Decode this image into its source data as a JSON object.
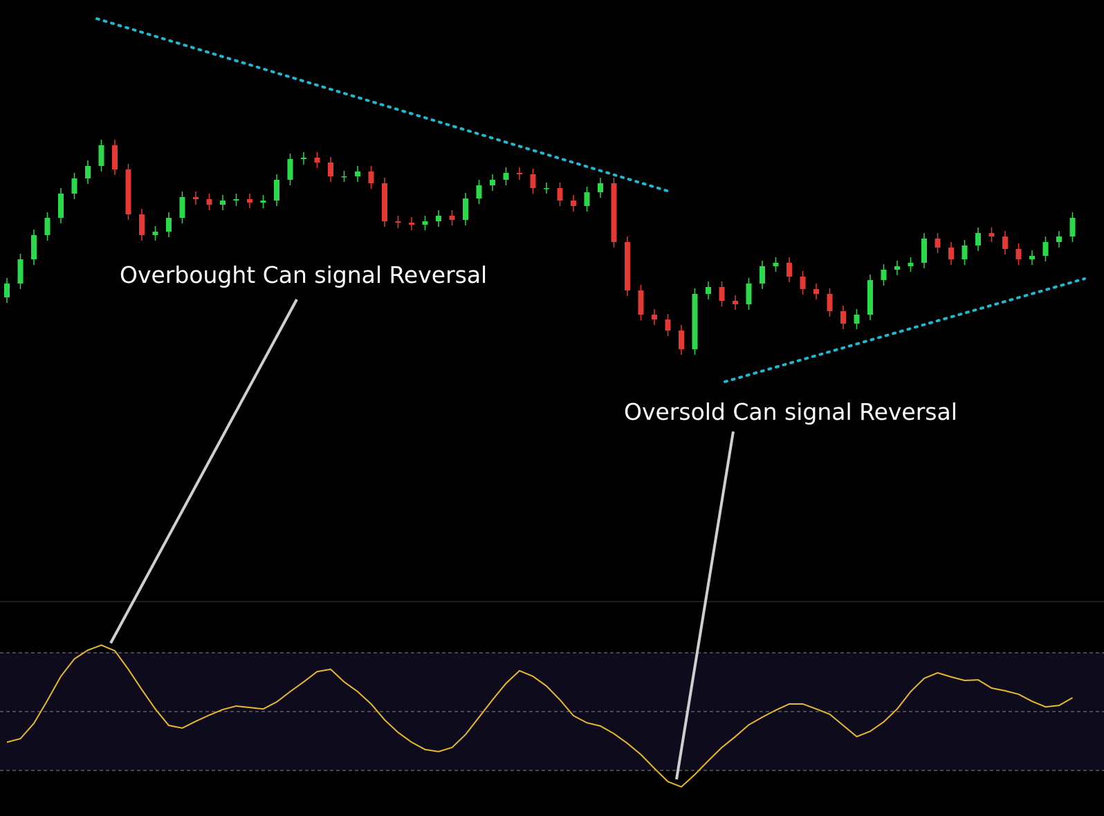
{
  "chart_data": [
    {
      "type": "candlestick",
      "up_color": "#2bd94a",
      "down_color": "#e53935",
      "ylim": [
        0,
        870
      ],
      "open": [
        440,
        460,
        495,
        530,
        555,
        590,
        612,
        630,
        660,
        625,
        560,
        530,
        535,
        555,
        585,
        582,
        574,
        580,
        582,
        577,
        580,
        610,
        640,
        642,
        635,
        615,
        615,
        622,
        605,
        550,
        548,
        545,
        550,
        558,
        552,
        583,
        602,
        610,
        620,
        618,
        598,
        598,
        580,
        572,
        592,
        605,
        520,
        450,
        415,
        408,
        392,
        365,
        445,
        455,
        435,
        430,
        460,
        485,
        490,
        470,
        452,
        445,
        420,
        402,
        415,
        465,
        480,
        485,
        490,
        525,
        512,
        495,
        515,
        533,
        528,
        510,
        495,
        500,
        520,
        528
      ],
      "high": [
        468,
        503,
        538,
        563,
        598,
        620,
        638,
        668,
        668,
        633,
        568,
        543,
        563,
        593,
        593,
        590,
        588,
        590,
        590,
        588,
        618,
        648,
        650,
        650,
        643,
        623,
        630,
        630,
        613,
        558,
        556,
        558,
        566,
        566,
        591,
        610,
        618,
        628,
        628,
        626,
        606,
        606,
        588,
        600,
        613,
        613,
        528,
        458,
        423,
        416,
        400,
        453,
        463,
        463,
        443,
        468,
        493,
        498,
        498,
        478,
        460,
        453,
        428,
        423,
        473,
        488,
        493,
        498,
        533,
        533,
        520,
        523,
        541,
        541,
        536,
        518,
        508,
        528,
        536,
        563
      ],
      "low": [
        432,
        452,
        487,
        522,
        547,
        582,
        604,
        622,
        617,
        552,
        522,
        522,
        527,
        547,
        574,
        566,
        566,
        572,
        569,
        569,
        572,
        602,
        632,
        627,
        607,
        607,
        607,
        597,
        542,
        540,
        537,
        537,
        542,
        544,
        544,
        575,
        594,
        602,
        610,
        590,
        590,
        572,
        564,
        564,
        584,
        512,
        442,
        407,
        400,
        384,
        357,
        357,
        437,
        427,
        422,
        422,
        452,
        477,
        462,
        444,
        437,
        412,
        394,
        394,
        407,
        457,
        472,
        477,
        482,
        504,
        487,
        487,
        507,
        520,
        502,
        487,
        487,
        492,
        512,
        520
      ],
      "close": [
        460,
        495,
        530,
        555,
        590,
        612,
        630,
        660,
        625,
        560,
        530,
        535,
        555,
        585,
        582,
        574,
        580,
        582,
        577,
        580,
        610,
        640,
        642,
        635,
        615,
        615,
        622,
        605,
        550,
        548,
        545,
        550,
        558,
        552,
        583,
        602,
        610,
        620,
        618,
        598,
        598,
        580,
        572,
        592,
        605,
        520,
        450,
        415,
        408,
        392,
        365,
        445,
        455,
        435,
        430,
        460,
        485,
        490,
        470,
        452,
        445,
        420,
        402,
        415,
        465,
        480,
        485,
        490,
        525,
        512,
        495,
        515,
        533,
        528,
        510,
        495,
        500,
        520,
        528,
        555
      ],
      "annotations": [
        "Overbought Can signal Reversal",
        "Oversold Can signal Reversal"
      ]
    },
    {
      "type": "line",
      "color": "#e8b830",
      "level_color": "#8a8a8a",
      "band_color": "#0e0b1c",
      "ylim": [
        14.5,
        87.4
      ],
      "levels": [
        70,
        50,
        30
      ],
      "values": [
        39.6,
        40.8,
        46.0,
        53.8,
        62.0,
        67.9,
        70.9,
        72.6,
        70.7,
        64.4,
        57.5,
        50.9,
        45.3,
        44.4,
        46.7,
        48.8,
        50.7,
        51.9,
        51.4,
        50.9,
        53.3,
        56.8,
        60.1,
        63.6,
        64.4,
        60.1,
        56.8,
        52.6,
        47.2,
        42.9,
        39.6,
        37.1,
        36.4,
        37.8,
        42.2,
        48.1,
        54.0,
        59.6,
        63.9,
        62.0,
        58.7,
        54.0,
        48.6,
        46.2,
        45.1,
        42.5,
        39.2,
        35.4,
        30.7,
        26.2,
        24.4,
        28.6,
        33.3,
        37.8,
        41.5,
        45.5,
        48.1,
        50.5,
        52.6,
        52.6,
        50.9,
        49.1,
        45.3,
        41.5,
        43.3,
        46.5,
        50.9,
        56.8,
        61.3,
        63.2,
        61.8,
        60.6,
        60.8,
        58.0,
        57.1,
        55.9,
        53.5,
        51.6,
        52.1,
        54.7
      ]
    }
  ]
}
